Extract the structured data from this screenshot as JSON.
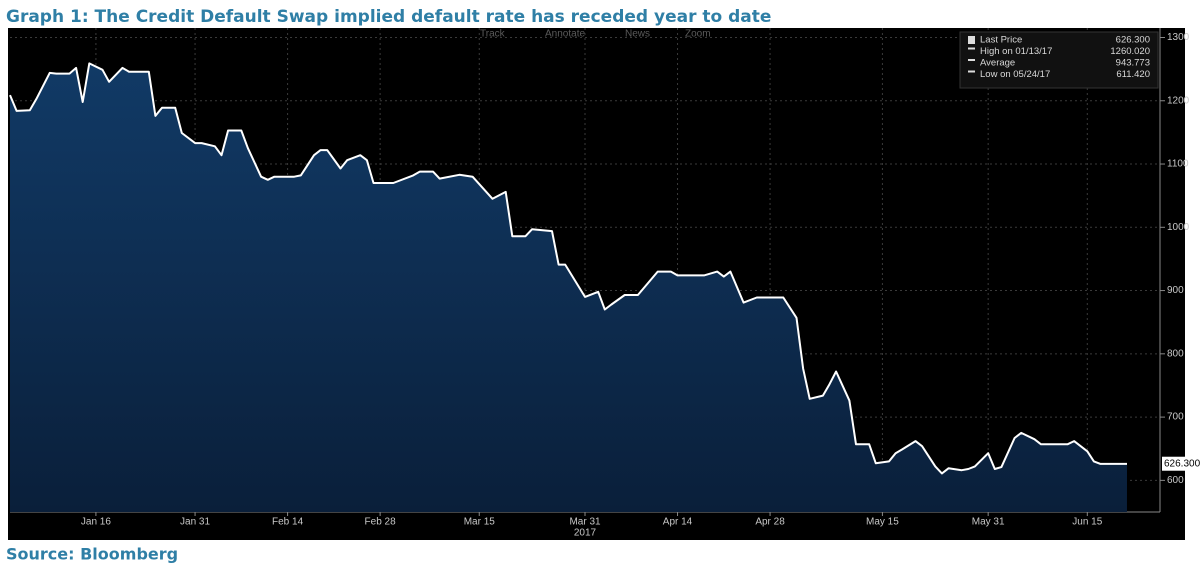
{
  "chart_data": {
    "type": "line",
    "title": "Graph 1: The Credit Default Swap implied default rate has receded year to date",
    "color": "#ffffff",
    "x": [
      "2017-01-03",
      "2017-01-04",
      "2017-01-06",
      "2017-01-07",
      "2017-01-09",
      "2017-01-10",
      "2017-01-12",
      "2017-01-13",
      "2017-01-14",
      "2017-01-15",
      "2017-01-17",
      "2017-01-18",
      "2017-01-20",
      "2017-01-21",
      "2017-01-22",
      "2017-01-24",
      "2017-01-25",
      "2017-01-26",
      "2017-01-28",
      "2017-01-29",
      "2017-01-31",
      "2017-02-01",
      "2017-02-03",
      "2017-02-04",
      "2017-02-05",
      "2017-02-07",
      "2017-02-08",
      "2017-02-10",
      "2017-02-11",
      "2017-02-12",
      "2017-02-15",
      "2017-02-16",
      "2017-02-18",
      "2017-02-19",
      "2017-02-20",
      "2017-02-22",
      "2017-02-23",
      "2017-02-25",
      "2017-02-26",
      "2017-02-27",
      "2017-03-02",
      "2017-03-05",
      "2017-03-06",
      "2017-03-08",
      "2017-03-09",
      "2017-03-12",
      "2017-03-14",
      "2017-03-17",
      "2017-03-19",
      "2017-03-20",
      "2017-03-22",
      "2017-03-23",
      "2017-03-26",
      "2017-03-27",
      "2017-03-28",
      "2017-03-31",
      "2017-04-02",
      "2017-04-03",
      "2017-04-04",
      "2017-04-06",
      "2017-04-08",
      "2017-04-11",
      "2017-04-13",
      "2017-04-14",
      "2017-04-18",
      "2017-04-20",
      "2017-04-21",
      "2017-04-22",
      "2017-04-24",
      "2017-04-26",
      "2017-04-28",
      "2017-04-30",
      "2017-05-02",
      "2017-05-03",
      "2017-05-04",
      "2017-05-06",
      "2017-05-07",
      "2017-05-08",
      "2017-05-10",
      "2017-05-11",
      "2017-05-13",
      "2017-05-14",
      "2017-05-16",
      "2017-05-17",
      "2017-05-18",
      "2017-05-20",
      "2017-05-21",
      "2017-05-23",
      "2017-05-24",
      "2017-05-25",
      "2017-05-27",
      "2017-05-28",
      "2017-05-29",
      "2017-05-31",
      "2017-06-01",
      "2017-06-02",
      "2017-06-04",
      "2017-06-05",
      "2017-06-07",
      "2017-06-08",
      "2017-06-12",
      "2017-06-13",
      "2017-06-15",
      "2017-06-16",
      "2017-06-17",
      "2017-06-21"
    ],
    "values": [
      1209,
      1184,
      1185,
      1203,
      1244,
      1243,
      1243,
      1252,
      1198,
      1259,
      1249,
      1230,
      1252,
      1246,
      1246,
      1246,
      1176,
      1189,
      1189,
      1149,
      1133,
      1133,
      1128,
      1114,
      1153,
      1153,
      1125,
      1080,
      1075,
      1080,
      1080,
      1082,
      1114,
      1122,
      1122,
      1093,
      1106,
      1114,
      1106,
      1070,
      1070,
      1082,
      1088,
      1088,
      1077,
      1083,
      1080,
      1045,
      1056,
      986,
      986,
      997,
      994,
      941,
      941,
      890,
      898,
      870,
      878,
      893,
      893,
      930,
      930,
      924,
      924,
      930,
      922,
      930,
      881,
      889,
      889,
      889,
      857,
      777,
      729,
      734,
      752,
      772,
      726,
      657,
      657,
      627,
      630,
      643,
      649,
      662,
      654,
      622,
      611,
      619,
      616,
      618,
      622,
      643,
      618,
      621,
      667,
      675,
      665,
      657,
      657,
      662,
      646,
      630,
      626,
      626
    ],
    "xlim": [
      "2017-01-03",
      "2017-06-26"
    ],
    "xticks": [
      {
        "value": "2017-01-16",
        "label": "Jan 16"
      },
      {
        "value": "2017-01-31",
        "label": "Jan 31"
      },
      {
        "value": "2017-02-14",
        "label": "Feb 14"
      },
      {
        "value": "2017-02-28",
        "label": "Feb 28"
      },
      {
        "value": "2017-03-15",
        "label": "Mar 15"
      },
      {
        "value": "2017-03-31",
        "label": "Mar 31"
      },
      {
        "value": "2017-04-14",
        "label": "Apr 14"
      },
      {
        "value": "2017-04-28",
        "label": "Apr 28"
      },
      {
        "value": "2017-05-15",
        "label": "May 15"
      },
      {
        "value": "2017-05-31",
        "label": "May 31"
      },
      {
        "value": "2017-06-15",
        "label": "Jun 15"
      }
    ],
    "x_year_label": "2017",
    "ylim": [
      550,
      1315
    ],
    "yticks": [
      600,
      700,
      800,
      900,
      1000,
      1100,
      1200,
      1300
    ],
    "grid": true,
    "legend": "upper right",
    "stats": {
      "labels": [
        "Last Price",
        "High on 01/13/17",
        "Average",
        "Low on 05/24/17"
      ],
      "values": [
        626.3,
        1260.02,
        943.773,
        611.42
      ],
      "value_labels": [
        "626.300",
        "1260.020",
        "943.773",
        "611.420"
      ]
    }
  },
  "toolbar": [
    "Track",
    "Annotate",
    "News",
    "Zoom"
  ],
  "source": "Source: Bloomberg"
}
